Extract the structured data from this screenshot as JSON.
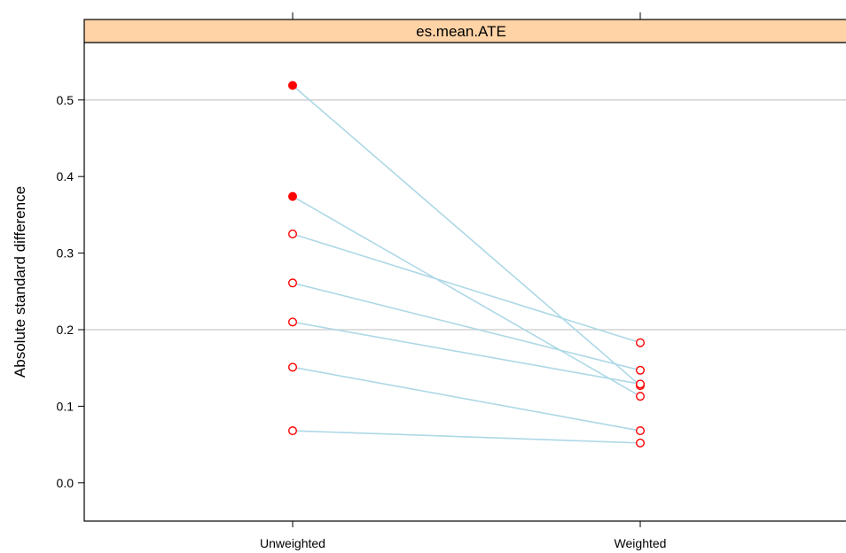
{
  "chart_data": {
    "type": "line",
    "title": "",
    "panel_title": "es.mean.ATE",
    "xlabel": "",
    "ylabel": "Absolute standard difference",
    "categories": [
      "Unweighted",
      "Weighted"
    ],
    "ylim": [
      -0.05,
      0.575
    ],
    "yticks": [
      0.0,
      0.1,
      0.2,
      0.3,
      0.4,
      0.5
    ],
    "reference_lines": [
      0.2,
      0.5
    ],
    "grid": false,
    "colors": {
      "strip": "#FFD3A6",
      "line": "#ADD8E6",
      "marker": "#FF0000",
      "reference_line": "#D3D3D3"
    },
    "series": [
      {
        "values": [
          0.519,
          0.127
        ],
        "significant": [
          true,
          false
        ]
      },
      {
        "values": [
          0.374,
          0.113
        ],
        "significant": [
          true,
          false
        ]
      },
      {
        "values": [
          0.325,
          0.183
        ],
        "significant": [
          false,
          false
        ]
      },
      {
        "values": [
          0.261,
          0.147
        ],
        "significant": [
          false,
          false
        ]
      },
      {
        "values": [
          0.21,
          0.129
        ],
        "significant": [
          false,
          false
        ]
      },
      {
        "values": [
          0.151,
          0.068
        ],
        "significant": [
          false,
          false
        ]
      },
      {
        "values": [
          0.068,
          0.052
        ],
        "significant": [
          false,
          false
        ]
      }
    ]
  }
}
